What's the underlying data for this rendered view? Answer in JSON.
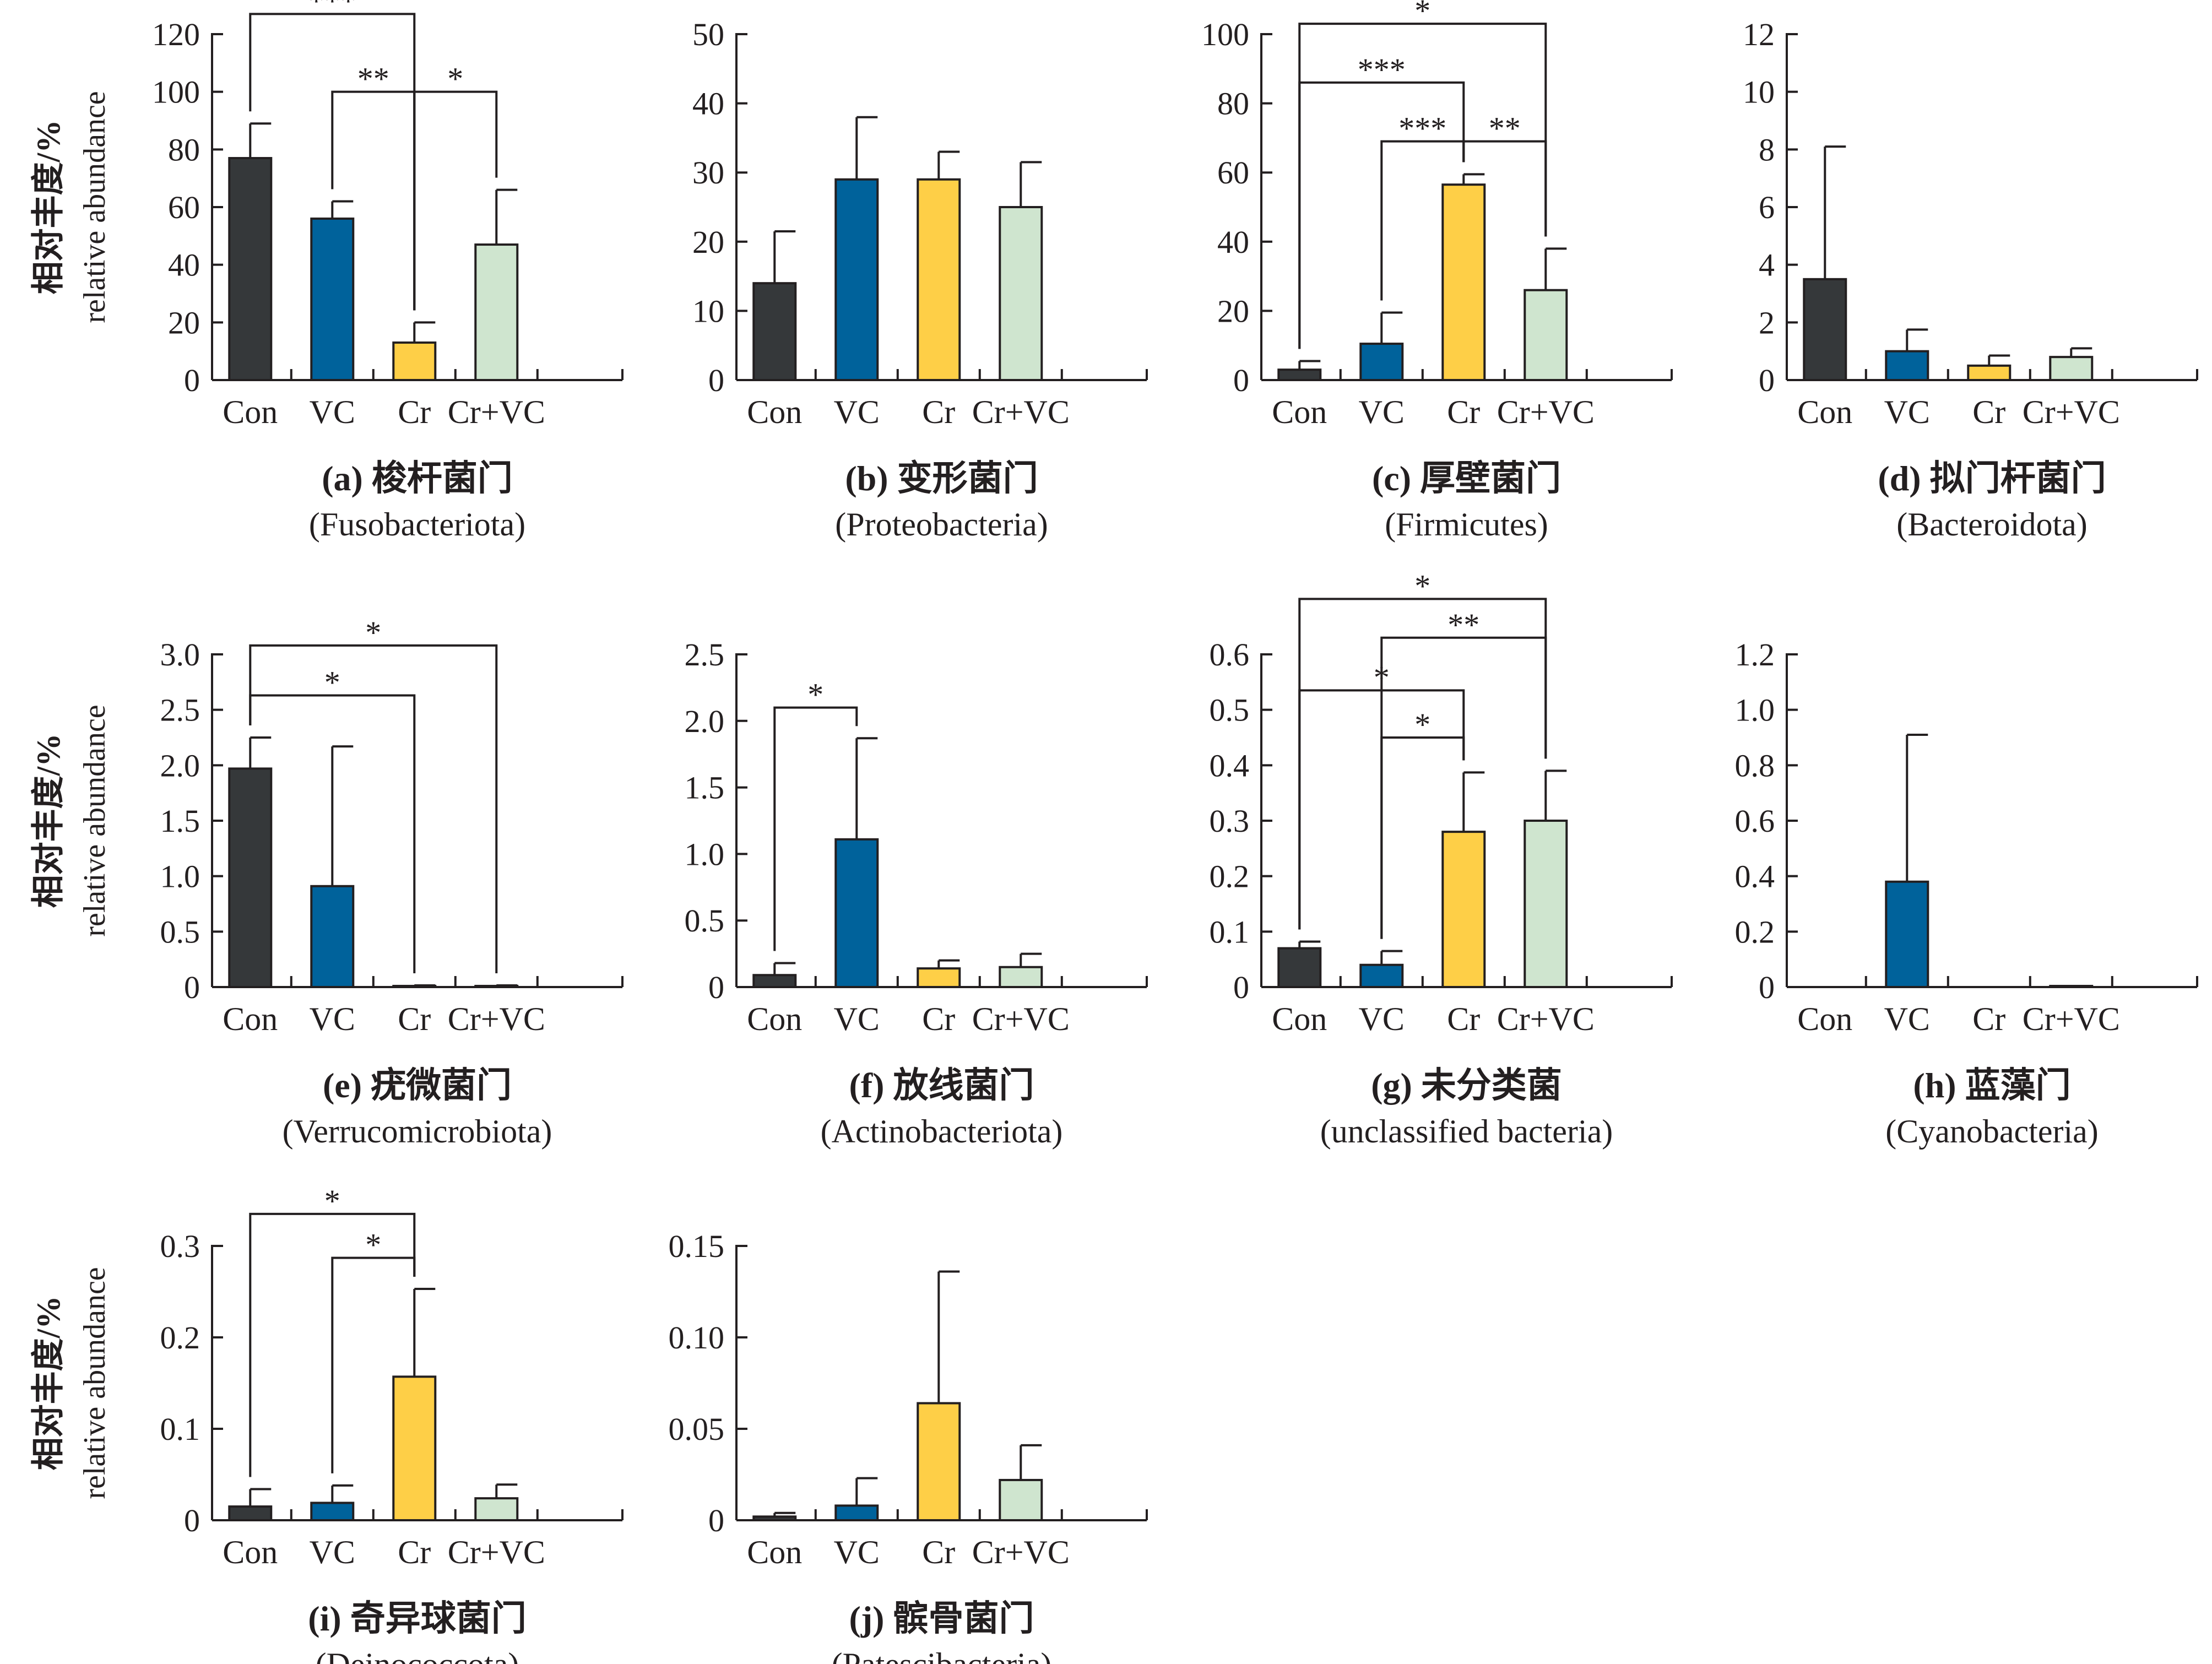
{
  "colors": {
    "Con": "#35383a",
    "VC": "#00629b",
    "Cr": "#fecf47",
    "Cr+VC": "#cfe5cf",
    "outline": "#231f20"
  },
  "ylabel_cn": "相对丰度/%",
  "ylabel_en": "relative abundance",
  "chart_data": [
    {
      "type": "bar",
      "title_cn": "(a) 梭杆菌门",
      "title_en": "(Fusobacteriota)",
      "categories": [
        "Con",
        "VC",
        "Cr",
        "Cr+VC"
      ],
      "values": [
        77,
        56,
        13,
        47
      ],
      "errors": [
        12,
        6,
        7,
        19
      ],
      "ylim": [
        0,
        120
      ],
      "yticks": [
        "0",
        "20",
        "40",
        "60",
        "80",
        "100",
        "120"
      ],
      "ylabel_cn": "相对丰度/%",
      "ylabel_en": "relative abundance",
      "significance": [
        {
          "from": 0,
          "to": 2,
          "label": "***",
          "level": 127
        },
        {
          "from": 1,
          "to": 2,
          "label": "**",
          "level": 100
        },
        {
          "from": 2,
          "to": 3,
          "label": "*",
          "level": 100
        }
      ]
    },
    {
      "type": "bar",
      "title_cn": "(b) 变形菌门",
      "title_en": "(Proteobacteria)",
      "categories": [
        "Con",
        "VC",
        "Cr",
        "Cr+VC"
      ],
      "values": [
        14,
        29,
        29,
        25
      ],
      "errors": [
        7.5,
        9,
        4,
        6.5
      ],
      "ylim": [
        0,
        50
      ],
      "yticks": [
        "0",
        "10",
        "20",
        "30",
        "40",
        "50"
      ],
      "significance": []
    },
    {
      "type": "bar",
      "title_cn": "(c) 厚壁菌门",
      "title_en": "(Firmicutes)",
      "categories": [
        "Con",
        "VC",
        "Cr",
        "Cr+VC"
      ],
      "values": [
        3,
        10.5,
        56.5,
        26
      ],
      "errors": [
        2.5,
        9,
        3,
        12
      ],
      "ylim": [
        0,
        100
      ],
      "yticks": [
        "0",
        "20",
        "40",
        "60",
        "80",
        "100"
      ],
      "significance": [
        {
          "from": 0,
          "to": 3,
          "label": "*",
          "level": 103
        },
        {
          "from": 0,
          "to": 2,
          "label": "***",
          "level": 86
        },
        {
          "from": 1,
          "to": 2,
          "label": "***",
          "level": 69
        },
        {
          "from": 2,
          "to": 3,
          "label": "**",
          "level": 69
        }
      ]
    },
    {
      "type": "bar",
      "title_cn": "(d) 拟门杆菌门",
      "title_en": "(Bacteroidota)",
      "categories": [
        "Con",
        "VC",
        "Cr",
        "Cr+VC"
      ],
      "values": [
        3.5,
        1,
        0.5,
        0.8
      ],
      "errors": [
        4.6,
        0.75,
        0.35,
        0.3
      ],
      "ylim": [
        0,
        12
      ],
      "yticks": [
        "0",
        "2",
        "4",
        "6",
        "8",
        "10",
        "12"
      ],
      "significance": []
    },
    {
      "type": "bar",
      "title_cn": "(e) 疣微菌门",
      "title_en": "(Verrucomicrobiota)",
      "categories": [
        "Con",
        "VC",
        "Cr",
        "Cr+VC"
      ],
      "values": [
        1.97,
        0.91,
        0.01,
        0.01
      ],
      "errors": [
        0.28,
        1.26,
        0.005,
        0.005
      ],
      "ylim": [
        0,
        3.0
      ],
      "yticks": [
        "0",
        "0.5",
        "1.0",
        "1.5",
        "2.0",
        "2.5",
        "3.0"
      ],
      "ylabel_cn": "相对丰度/%",
      "ylabel_en": "relative abundance",
      "significance": [
        {
          "from": 0,
          "to": 3,
          "label": "*",
          "level": 3.08
        },
        {
          "from": 0,
          "to": 2,
          "label": "*",
          "level": 2.63
        }
      ]
    },
    {
      "type": "bar",
      "title_cn": "(f) 放线菌门",
      "title_en": "(Actinobacteriota)",
      "categories": [
        "Con",
        "VC",
        "Cr",
        "Cr+VC"
      ],
      "values": [
        0.09,
        1.11,
        0.14,
        0.15
      ],
      "errors": [
        0.09,
        0.76,
        0.06,
        0.1
      ],
      "ylim": [
        0,
        2.5
      ],
      "yticks": [
        "0",
        "0.5",
        "1.0",
        "1.5",
        "2.0",
        "2.5"
      ],
      "significance": [
        {
          "from": 0,
          "to": 1,
          "label": "*",
          "level": 2.1
        }
      ]
    },
    {
      "type": "bar",
      "title_cn": "(g) 未分类菌",
      "title_en": "(unclassified bacteria)",
      "categories": [
        "Con",
        "VC",
        "Cr",
        "Cr+VC"
      ],
      "values": [
        0.07,
        0.04,
        0.28,
        0.3
      ],
      "errors": [
        0.012,
        0.025,
        0.107,
        0.09
      ],
      "ylim": [
        0,
        0.6
      ],
      "yticks": [
        "0",
        "0.1",
        "0.2",
        "0.3",
        "0.4",
        "0.5",
        "0.6"
      ],
      "significance": [
        {
          "from": 0,
          "to": 3,
          "label": "*",
          "level": 0.7
        },
        {
          "from": 1,
          "to": 3,
          "label": "**",
          "level": 0.63
        },
        {
          "from": 0,
          "to": 2,
          "label": "*",
          "level": 0.535
        },
        {
          "from": 1,
          "to": 2,
          "label": "*",
          "level": 0.45
        }
      ]
    },
    {
      "type": "bar",
      "title_cn": "(h) 蓝藻门",
      "title_en": "(Cyanobacteria)",
      "categories": [
        "Con",
        "VC",
        "Cr",
        "Cr+VC"
      ],
      "values": [
        0,
        0.38,
        0,
        0.003
      ],
      "errors": [
        0,
        0.53,
        0,
        0
      ],
      "ylim": [
        0,
        1.2
      ],
      "yticks": [
        "0",
        "0.2",
        "0.4",
        "0.6",
        "0.8",
        "1.0",
        "1.2"
      ],
      "significance": []
    },
    {
      "type": "bar",
      "title_cn": "(i) 奇异球菌门",
      "title_en": "(Deinococcota)",
      "categories": [
        "Con",
        "VC",
        "Cr",
        "Cr+VC"
      ],
      "values": [
        0.015,
        0.019,
        0.157,
        0.024
      ],
      "errors": [
        0.019,
        0.019,
        0.096,
        0.015
      ],
      "ylim": [
        0,
        0.3
      ],
      "yticks": [
        "0",
        "0.1",
        "0.2",
        "0.3"
      ],
      "ylabel_cn": "相对丰度/%",
      "ylabel_en": "relative abundance",
      "significance": [
        {
          "from": 0,
          "to": 2,
          "label": "*",
          "level": 0.335
        },
        {
          "from": 1,
          "to": 2,
          "label": "*",
          "level": 0.287
        }
      ]
    },
    {
      "type": "bar",
      "title_cn": "(j) 髌骨菌门",
      "title_en": "(Patescibacteria)",
      "categories": [
        "Con",
        "VC",
        "Cr",
        "Cr+VC"
      ],
      "values": [
        0.002,
        0.008,
        0.064,
        0.022
      ],
      "errors": [
        0.002,
        0.015,
        0.072,
        0.019
      ],
      "ylim": [
        0,
        0.15
      ],
      "yticks": [
        "0",
        "0.05",
        "0.10",
        "0.15"
      ],
      "significance": []
    }
  ]
}
